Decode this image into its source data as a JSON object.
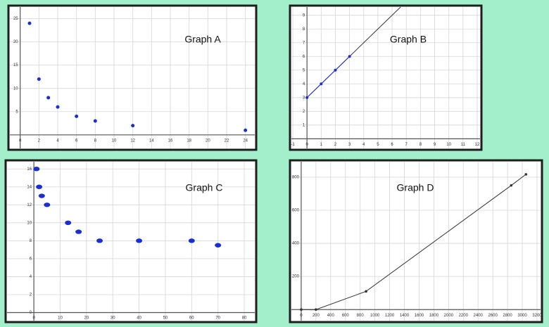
{
  "chart_data": [
    {
      "type": "scatter",
      "title": "Graph A",
      "xlim": [
        -1.1,
        25
      ],
      "ylim": [
        -2.9,
        27.5
      ],
      "xticks": [
        0,
        2,
        4,
        6,
        8,
        10,
        12,
        14,
        16,
        18,
        20,
        22,
        24
      ],
      "yticks": [
        5,
        10,
        15,
        20,
        25
      ],
      "grid": true,
      "series": [
        {
          "color": "#1a2fcf",
          "x": [
            1,
            2,
            3,
            4,
            6,
            8,
            12,
            24
          ],
          "values": [
            24,
            12,
            8,
            6,
            4,
            3,
            2,
            1
          ]
        }
      ]
    },
    {
      "type": "line",
      "title": "Graph B",
      "xlim": [
        -1.1,
        12.2
      ],
      "ylim": [
        -0.7,
        9.6
      ],
      "xticks": [
        -1,
        0,
        1,
        2,
        3,
        4,
        5,
        6,
        7,
        8,
        9,
        10,
        11,
        12
      ],
      "yticks": [
        1,
        2,
        3,
        4,
        5,
        6,
        7,
        8,
        9
      ],
      "grid": true,
      "series": [
        {
          "color": "#333333",
          "marker": false,
          "x": [
            0,
            6.6
          ],
          "values": [
            3,
            9.6
          ]
        },
        {
          "color": "#1a2fcf",
          "marker": true,
          "x": [
            0,
            1,
            2,
            3
          ],
          "values": [
            3,
            4,
            5,
            6
          ]
        }
      ]
    },
    {
      "type": "scatter",
      "title": "Graph C",
      "xlim": [
        -10.2,
        84
      ],
      "ylim": [
        -0.9,
        16.8
      ],
      "xticks": [
        0,
        10,
        20,
        30,
        40,
        50,
        60,
        70,
        80
      ],
      "yticks": [
        0,
        2,
        4,
        6,
        8,
        10,
        12,
        14,
        16
      ],
      "grid": true,
      "series": [
        {
          "color": "#1a2fcf",
          "x": [
            1,
            2,
            3,
            5,
            13,
            17,
            25,
            40,
            60,
            70
          ],
          "values": [
            16,
            14,
            13,
            12,
            10,
            9,
            8,
            8,
            8,
            7.5
          ]
        }
      ]
    },
    {
      "type": "line",
      "title": "Graph D",
      "xlim": [
        -133,
        3248
      ],
      "ylim": [
        -67,
        893
      ],
      "xticks": [
        0,
        200,
        400,
        600,
        800,
        1000,
        1200,
        1400,
        1600,
        1800,
        2000,
        2200,
        2400,
        2600,
        2800,
        3000,
        3200
      ],
      "yticks": [
        200,
        400,
        600,
        800
      ],
      "grid": true,
      "series": [
        {
          "color": "#333333",
          "marker": true,
          "x": [
            0,
            200,
            880,
            2850,
            3050
          ],
          "values": [
            0,
            0,
            110,
            750,
            817
          ]
        }
      ]
    }
  ]
}
